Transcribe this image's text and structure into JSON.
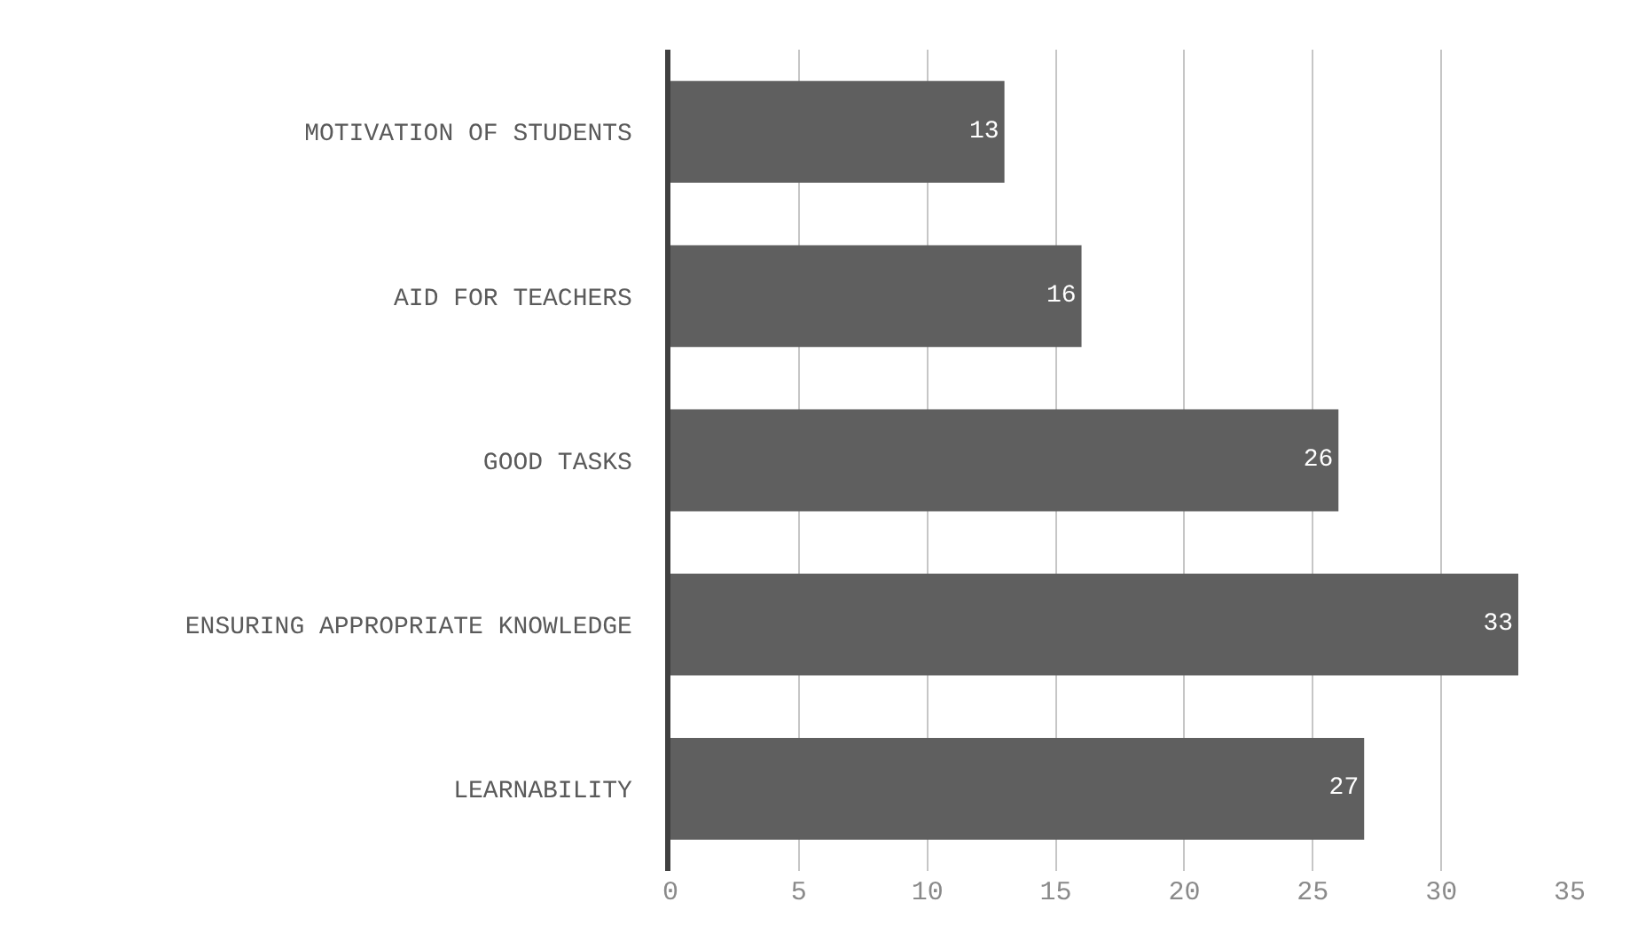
{
  "chart_data": {
    "type": "bar",
    "orientation": "horizontal",
    "categories": [
      "MOTIVATION OF STUDENTS",
      "AID FOR TEACHERS",
      "GOOD TASKS",
      "ENSURING APPROPRIATE KNOWLEDGE",
      "LEARNABILITY"
    ],
    "values": [
      13,
      16,
      26,
      33,
      27
    ],
    "color": "#5f5f5f",
    "xlim": [
      0,
      35
    ],
    "xticks": [
      0,
      5,
      10,
      15,
      20,
      25,
      30,
      35
    ],
    "grid": "x",
    "data_labels": true
  }
}
